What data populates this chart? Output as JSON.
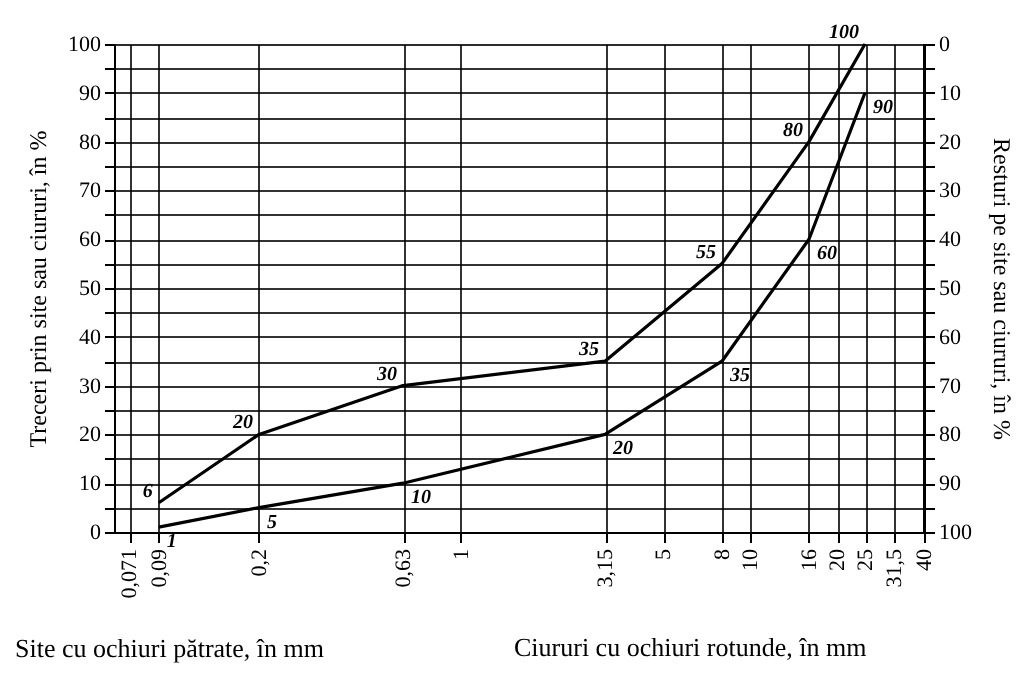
{
  "chart_data": {
    "type": "line",
    "ylabel": "Treceri prin site sau ciururi, în %",
    "y2label": "Resturi pe site sau ciururi, în %",
    "xlabel": "Site cu ochiuri pătrate, în mm",
    "annotations": [
      "Ciururi cu ochiuri rotunde, în mm"
    ],
    "x": [
      0.09,
      0.2,
      0.63,
      3.15,
      8,
      16,
      25
    ],
    "series": [
      {
        "color": "#000000",
        "values": [
          6,
          20,
          30,
          35,
          55,
          80,
          100
        ]
      },
      {
        "color": "#000000",
        "values": [
          1,
          5,
          10,
          20,
          35,
          60,
          90
        ]
      }
    ],
    "log": "x",
    "xlim": [
      0.063,
      40
    ],
    "xticks": [
      {
        "value": 0.071,
        "label": "0,071"
      },
      {
        "value": 0.09,
        "label": "0,09"
      },
      {
        "value": 0.2,
        "label": "0,2"
      },
      {
        "value": 0.63,
        "label": "0,63"
      },
      1,
      {
        "value": 3.15,
        "label": "3,15"
      },
      5,
      8,
      10,
      16,
      20,
      25,
      {
        "value": 31.5,
        "label": "31,5"
      },
      40
    ],
    "ylim": [
      0,
      100
    ],
    "yticks": [
      0,
      {
        "value": 5,
        "label": null
      },
      10,
      {
        "value": 15,
        "label": null
      },
      20,
      {
        "value": 25,
        "label": null
      },
      30,
      {
        "value": 35,
        "label": null
      },
      40,
      {
        "value": 45,
        "label": null
      },
      50,
      {
        "value": 55,
        "label": null
      },
      60,
      {
        "value": 65,
        "label": null
      },
      70,
      {
        "value": 75,
        "label": null
      },
      80,
      {
        "value": 85,
        "label": null
      },
      90,
      {
        "value": 95,
        "label": null
      },
      100
    ],
    "y2lim": [
      100,
      0
    ],
    "y2ticks": [
      0,
      {
        "value": 5,
        "label": null
      },
      10,
      {
        "value": 15,
        "label": null
      },
      20,
      {
        "value": 25,
        "label": null
      },
      30,
      {
        "value": 35,
        "label": null
      },
      40,
      {
        "value": 45,
        "label": null
      },
      50,
      {
        "value": 55,
        "label": null
      },
      60,
      {
        "value": 65,
        "label": null
      },
      70,
      {
        "value": 75,
        "label": null
      },
      80,
      {
        "value": 85,
        "label": null
      },
      90,
      {
        "value": 95,
        "label": null
      },
      100
    ],
    "grid": true,
    "legend": false,
    "marker": "none",
    "line_style": "solid",
    "data_labels": true
  }
}
